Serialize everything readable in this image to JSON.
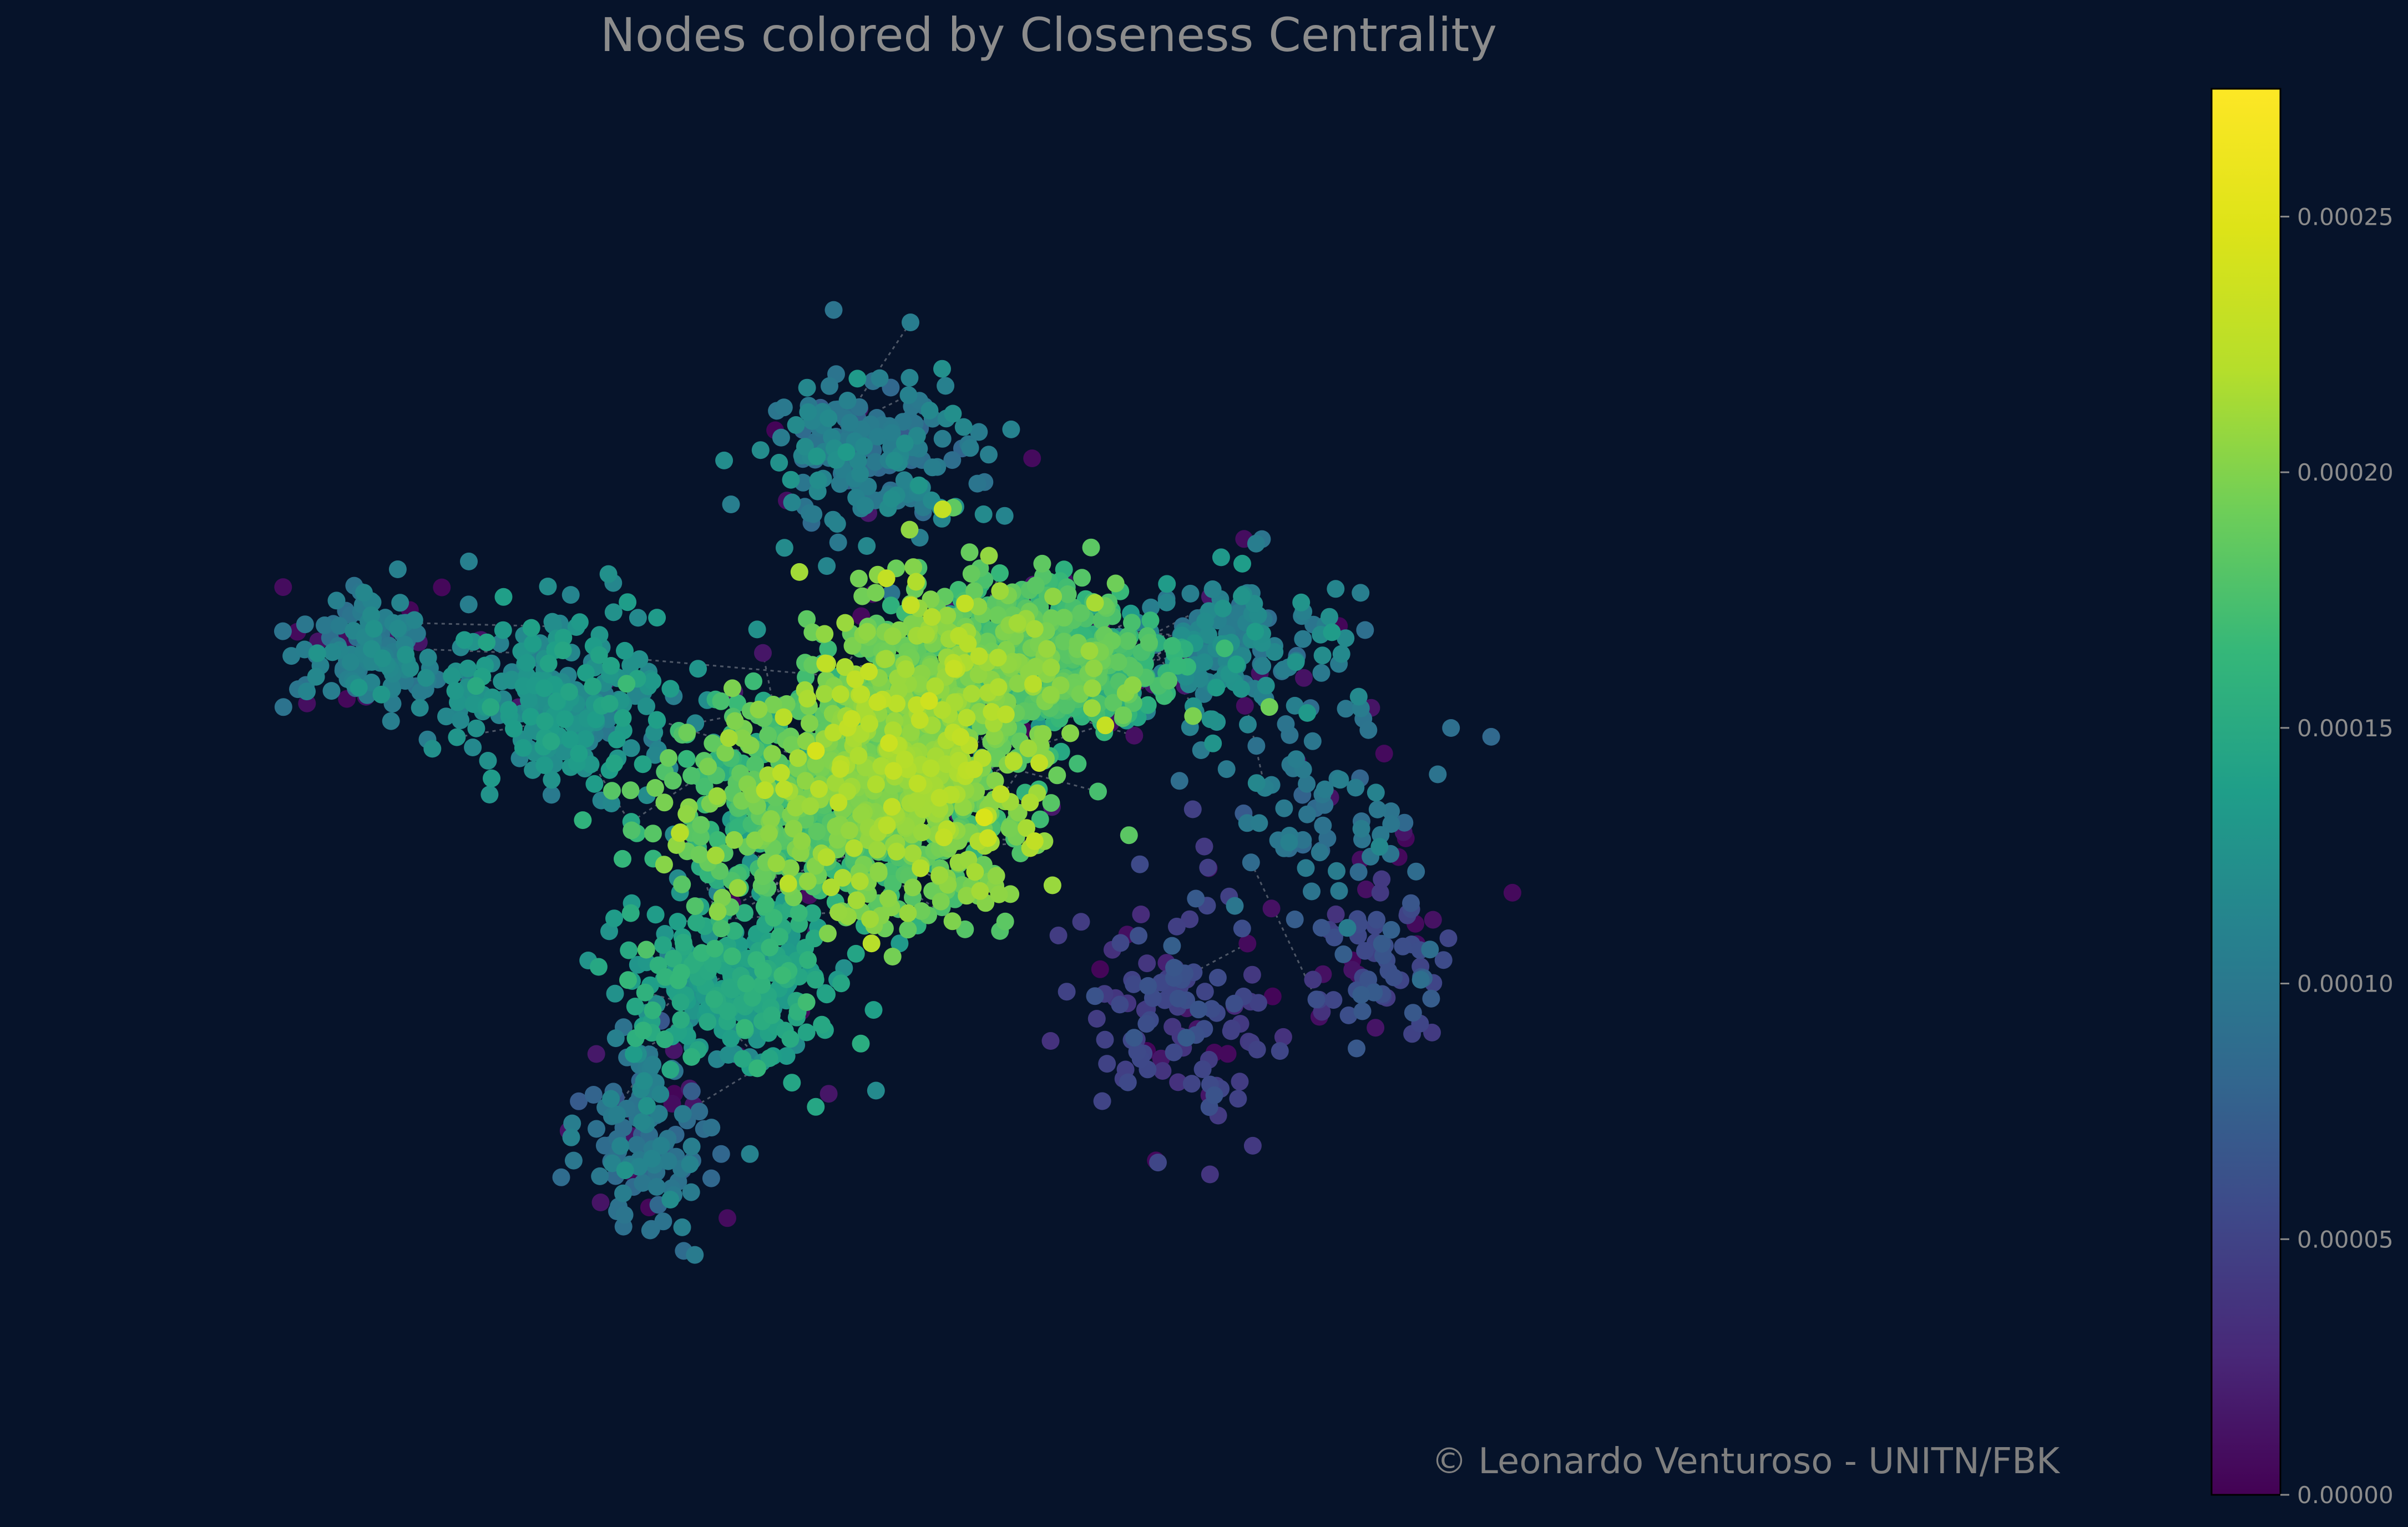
{
  "title": "Nodes colored by Closeness Centrality",
  "credit": "© Leonardo Venturoso - UNITN/FBK",
  "colors": {
    "background": "#06132a",
    "edge": "#8a8f99",
    "text": "#8c8c8c"
  },
  "chart_data": {
    "type": "scatter",
    "colormap": "viridis",
    "colorbar": {
      "min": 0.0,
      "max": 0.000275,
      "ticks": [
        0.0,
        5e-05,
        0.0001,
        0.00015,
        0.0002,
        0.00025
      ],
      "tick_labels": [
        "0.00000",
        "0.00005",
        "0.00010",
        "0.00015",
        "0.00020",
        "0.00025"
      ]
    },
    "grid": false,
    "axes_visible": false,
    "clusters": [
      {
        "x": 0.42,
        "y": 0.47,
        "sx": 0.06,
        "sy": 0.1,
        "n": 900,
        "value": 0.000195,
        "spread": 1.5e-05
      },
      {
        "x": 0.36,
        "y": 0.51,
        "sx": 0.07,
        "sy": 0.08,
        "n": 500,
        "value": 0.000175,
        "spread": 1.8e-05
      },
      {
        "x": 0.48,
        "y": 0.38,
        "sx": 0.05,
        "sy": 0.05,
        "n": 300,
        "value": 0.00018,
        "spread": 1.5e-05
      },
      {
        "x": 0.52,
        "y": 0.4,
        "sx": 0.05,
        "sy": 0.04,
        "n": 260,
        "value": 0.00016,
        "spread": 1.5e-05
      },
      {
        "x": 0.32,
        "y": 0.66,
        "sx": 0.05,
        "sy": 0.06,
        "n": 260,
        "value": 0.00014,
        "spread": 1.2e-05
      },
      {
        "x": 0.22,
        "y": 0.42,
        "sx": 0.06,
        "sy": 0.06,
        "n": 260,
        "value": 0.000125,
        "spread": 1.2e-05
      },
      {
        "x": 0.11,
        "y": 0.38,
        "sx": 0.03,
        "sy": 0.04,
        "n": 120,
        "value": 0.000105,
        "spread": 1e-05
      },
      {
        "x": 0.4,
        "y": 0.22,
        "sx": 0.05,
        "sy": 0.06,
        "n": 180,
        "value": 0.000105,
        "spread": 1.2e-05
      },
      {
        "x": 0.27,
        "y": 0.78,
        "sx": 0.03,
        "sy": 0.07,
        "n": 120,
        "value": 9.5e-05,
        "spread": 1.2e-05
      },
      {
        "x": 0.6,
        "y": 0.38,
        "sx": 0.05,
        "sy": 0.05,
        "n": 150,
        "value": 0.00011,
        "spread": 1.2e-05
      },
      {
        "x": 0.66,
        "y": 0.52,
        "sx": 0.05,
        "sy": 0.07,
        "n": 70,
        "value": 9.5e-05,
        "spread": 1e-05
      },
      {
        "x": 0.57,
        "y": 0.68,
        "sx": 0.05,
        "sy": 0.09,
        "n": 110,
        "value": 5e-05,
        "spread": 1e-05
      },
      {
        "x": 0.68,
        "y": 0.64,
        "sx": 0.03,
        "sy": 0.05,
        "n": 60,
        "value": 6e-05,
        "spread": 1e-05
      }
    ],
    "isolated_low_nodes": 140
  }
}
